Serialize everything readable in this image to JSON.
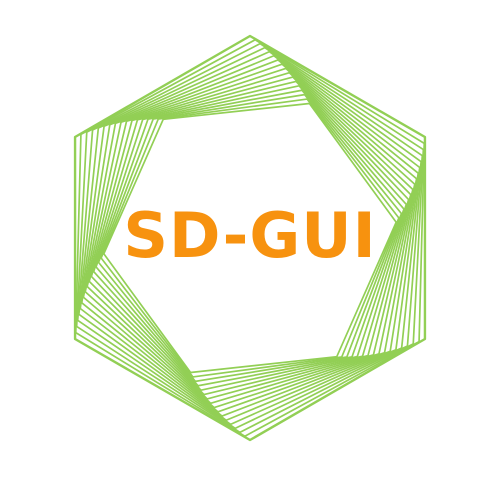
{
  "logo": {
    "wordmark": "SD-GUI",
    "wordmark_color": "#F7920F",
    "line_color": "#92CF55",
    "mark_icon": "twisted-hexagon-spiral-icon"
  }
}
